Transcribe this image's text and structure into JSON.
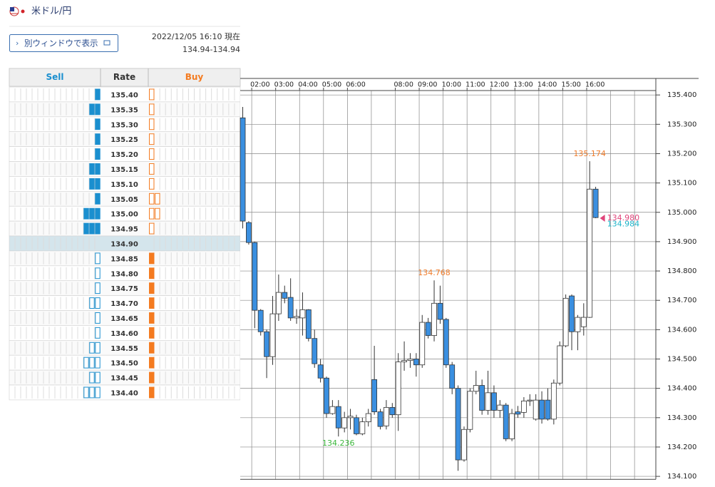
{
  "header": {
    "title": "米ドル/円",
    "button": "別ウィンドウで表示",
    "timestamp": "2022/12/05 16:10 現在",
    "bid_ask": "134.94-134.94"
  },
  "order_book": {
    "columns": [
      "Sell",
      "Rate",
      "Buy"
    ],
    "current_rate": "134.90",
    "sell_color": "#1a8fcf",
    "buy_color": "#f47b20",
    "rows": [
      {
        "rate": "135.40",
        "sell": 1,
        "buy": 1
      },
      {
        "rate": "135.35",
        "sell": 2,
        "buy": 1
      },
      {
        "rate": "135.30",
        "sell": 1,
        "buy": 1
      },
      {
        "rate": "135.25",
        "sell": 1,
        "buy": 1
      },
      {
        "rate": "135.20",
        "sell": 1,
        "buy": 1
      },
      {
        "rate": "135.15",
        "sell": 2,
        "buy": 1
      },
      {
        "rate": "135.10",
        "sell": 2,
        "buy": 1
      },
      {
        "rate": "135.05",
        "sell": 1,
        "buy": 2
      },
      {
        "rate": "135.00",
        "sell": 3,
        "buy": 2
      },
      {
        "rate": "134.95",
        "sell": 3,
        "buy": 1
      },
      {
        "rate": "134.90",
        "sell": 0,
        "buy": 0
      },
      {
        "rate": "134.85",
        "sell": 1,
        "buy": 1
      },
      {
        "rate": "134.80",
        "sell": 1,
        "buy": 1
      },
      {
        "rate": "134.75",
        "sell": 1,
        "buy": 1
      },
      {
        "rate": "134.70",
        "sell": 2,
        "buy": 1
      },
      {
        "rate": "134.65",
        "sell": 1,
        "buy": 1
      },
      {
        "rate": "134.60",
        "sell": 1,
        "buy": 1
      },
      {
        "rate": "134.55",
        "sell": 2,
        "buy": 1
      },
      {
        "rate": "134.50",
        "sell": 3,
        "buy": 1
      },
      {
        "rate": "134.45",
        "sell": 2,
        "buy": 1
      },
      {
        "rate": "134.40",
        "sell": 3,
        "buy": 1
      }
    ]
  },
  "chart_data": {
    "type": "candlestick",
    "up_color": "#ffffff",
    "down_color": "#3a8fe0",
    "xlim": [
      1.52,
      18.89
    ],
    "xticks": [
      {
        "value": 2,
        "label": "02:00"
      },
      {
        "value": 3,
        "label": "03:00"
      },
      {
        "value": 4,
        "label": "04:00"
      },
      {
        "value": 5,
        "label": "05:00"
      },
      {
        "value": 6,
        "label": "06:00"
      },
      {
        "value": 8,
        "label": "08:00"
      },
      {
        "value": 9,
        "label": "09:00"
      },
      {
        "value": 10,
        "label": "10:00"
      },
      {
        "value": 11,
        "label": "11:00"
      },
      {
        "value": 12,
        "label": "12:00"
      },
      {
        "value": 13,
        "label": "13:00"
      },
      {
        "value": 14,
        "label": "14:00"
      },
      {
        "value": 15,
        "label": "15:00"
      },
      {
        "value": 16,
        "label": "16:00"
      }
    ],
    "xgrid": [
      2,
      3,
      4,
      5,
      6,
      7,
      8,
      9,
      10,
      11,
      12,
      13,
      14,
      15,
      16,
      17,
      18
    ],
    "ylim": [
      134.09,
      135.415
    ],
    "yticks": [
      {
        "value": 135.4,
        "label": "135.400"
      },
      {
        "value": 135.3,
        "label": "135.300"
      },
      {
        "value": 135.2,
        "label": "135.200"
      },
      {
        "value": 135.1,
        "label": "135.100"
      },
      {
        "value": 135.0,
        "label": "135.000"
      },
      {
        "value": 134.9,
        "label": "134.900"
      },
      {
        "value": 134.8,
        "label": "134.800"
      },
      {
        "value": 134.7,
        "label": "134.700"
      },
      {
        "value": 134.6,
        "label": "134.600"
      },
      {
        "value": 134.5,
        "label": "134.500"
      },
      {
        "value": 134.4,
        "label": "134.400"
      },
      {
        "value": 134.3,
        "label": "134.300"
      },
      {
        "value": 134.2,
        "label": "134.200"
      },
      {
        "value": 134.1,
        "label": "134.100"
      }
    ],
    "grid": true,
    "x": [
      1.625,
      1.875,
      2.125,
      2.375,
      2.625,
      2.875,
      3.125,
      3.375,
      3.625,
      3.875,
      4.125,
      4.375,
      4.625,
      4.875,
      5.125,
      5.375,
      5.625,
      5.875,
      6.125,
      6.375,
      6.625,
      6.875,
      7.125,
      7.375,
      7.625,
      7.875,
      8.125,
      8.375,
      8.625,
      8.875,
      9.125,
      9.375,
      9.625,
      9.875,
      10.125,
      10.375,
      10.625,
      10.875,
      11.125,
      11.375,
      11.625,
      11.875,
      12.125,
      12.375,
      12.625,
      12.875,
      13.125,
      13.375,
      13.625,
      13.875,
      14.125,
      14.375,
      14.625,
      14.875,
      15.125,
      15.375,
      15.625,
      15.875,
      16.125,
      16.375
    ],
    "open": [
      135.322,
      134.965,
      134.897,
      134.666,
      134.593,
      134.508,
      134.654,
      134.727,
      134.71,
      134.64,
      134.64,
      134.668,
      134.57,
      134.48,
      134.435,
      134.314,
      134.338,
      134.265,
      134.3,
      134.3,
      134.245,
      134.286,
      134.43,
      134.32,
      134.272,
      134.335,
      134.31,
      134.49,
      134.495,
      134.5,
      134.48,
      134.625,
      134.58,
      134.69,
      134.635,
      134.48,
      134.4,
      134.156,
      134.26,
      134.39,
      134.41,
      134.325,
      134.385,
      134.325,
      134.343,
      134.228,
      134.32,
      134.318,
      134.357,
      134.295,
      134.36,
      134.36,
      134.295,
      134.418,
      134.545,
      134.715,
      134.593,
      134.61,
      134.642,
      135.079
    ],
    "high": [
      135.359,
      134.97,
      134.9,
      134.67,
      134.6,
      134.715,
      134.788,
      134.75,
      134.775,
      134.67,
      134.727,
      134.67,
      134.6,
      134.5,
      134.44,
      134.36,
      134.36,
      134.32,
      134.33,
      134.31,
      134.3,
      134.33,
      134.545,
      134.33,
      134.36,
      134.35,
      134.52,
      134.56,
      134.52,
      134.52,
      134.65,
      134.64,
      134.768,
      134.75,
      134.64,
      134.49,
      134.41,
      134.27,
      134.4,
      134.46,
      134.43,
      134.46,
      134.41,
      134.36,
      134.35,
      134.33,
      134.34,
      134.37,
      134.38,
      134.38,
      134.39,
      134.4,
      134.43,
      134.56,
      134.72,
      134.72,
      134.65,
      134.69,
      135.174,
      135.087
    ],
    "low": [
      134.945,
      134.89,
      134.605,
      134.58,
      134.435,
      134.48,
      134.63,
      134.69,
      134.63,
      134.62,
      134.58,
      134.56,
      134.47,
      134.42,
      134.3,
      134.31,
      134.236,
      134.25,
      134.26,
      134.24,
      134.24,
      134.27,
      134.31,
      134.26,
      134.26,
      134.3,
      134.255,
      134.46,
      134.47,
      134.44,
      134.47,
      134.57,
      134.56,
      134.62,
      134.47,
      134.38,
      134.119,
      134.15,
      134.25,
      134.38,
      134.31,
      134.31,
      134.3,
      134.3,
      134.22,
      134.22,
      134.3,
      134.3,
      134.34,
      134.29,
      134.28,
      134.29,
      134.277,
      134.41,
      134.54,
      134.53,
      134.53,
      134.58,
      134.64,
      134.98
    ],
    "close": [
      134.97,
      134.897,
      134.666,
      134.593,
      134.508,
      134.654,
      134.727,
      134.707,
      134.64,
      134.645,
      134.668,
      134.57,
      134.484,
      134.435,
      134.314,
      134.338,
      134.265,
      134.3,
      134.305,
      134.245,
      134.286,
      134.314,
      134.32,
      134.27,
      134.335,
      134.31,
      134.49,
      134.495,
      134.5,
      134.48,
      134.625,
      134.58,
      134.69,
      134.635,
      134.48,
      134.4,
      134.156,
      134.26,
      134.39,
      134.41,
      134.325,
      134.385,
      134.325,
      134.343,
      134.228,
      134.314,
      134.312,
      134.357,
      134.36,
      134.36,
      134.295,
      134.295,
      134.418,
      134.545,
      134.707,
      134.593,
      134.642,
      134.642,
      135.079,
      134.982
    ],
    "annotations": [
      {
        "value": 135.174,
        "color": "#f07c2a"
      },
      {
        "value": 134.768,
        "color": "#f07c2a"
      },
      {
        "value": 134.236,
        "color": "#3cb83c"
      }
    ],
    "price_markers": [
      {
        "value": 134.98,
        "label": "134.980",
        "color": "#e0457b"
      },
      {
        "value": 134.984,
        "color": "#1fb5c9"
      }
    ]
  }
}
